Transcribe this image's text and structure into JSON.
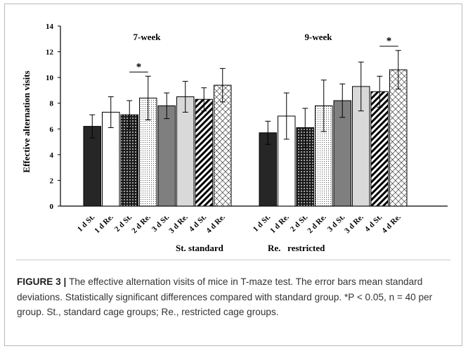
{
  "figure": {
    "label": "FIGURE 3",
    "separator": " | ",
    "caption": "The effective alternation visits of mice in T-maze test. The error bars mean standard deviations. Statistically significant differences compared with standard group. *P < 0.05, n = 40 per group. St., standard cage groups; Re., restricted cage groups."
  },
  "legend_note": {
    "st": "St. standard",
    "re": "Re.   restricted"
  },
  "colors": {
    "st1": "#262626",
    "re1": "#ffffff",
    "st2_pattern": "dots-dark",
    "re2_pattern": "dots-light",
    "st3": "#7f7f7f",
    "re3": "#d9d9d9",
    "st4_pattern": "diagonal-hatch",
    "re4_pattern": "cross-hatch"
  },
  "chart_data": {
    "type": "bar",
    "ylabel": "Effective alternation visits",
    "xlabel": "",
    "ylim": [
      0,
      14
    ],
    "yticks": [
      0,
      2,
      4,
      6,
      8,
      10,
      12,
      14
    ],
    "grid": false,
    "categories": [
      "1 d St.",
      "1 d Re.",
      "2 d St.",
      "2 d Re.",
      "3 d St.",
      "3 d Re.",
      "4 d St.",
      "4 d Re."
    ],
    "panels": [
      {
        "title": "7-week",
        "values": [
          6.2,
          7.3,
          7.1,
          8.4,
          7.8,
          8.5,
          8.3,
          9.4
        ],
        "errors": [
          0.9,
          1.2,
          1.1,
          1.7,
          1.0,
          1.2,
          0.9,
          1.3
        ],
        "significance": [
          {
            "from": 2,
            "to": 3,
            "label": "*"
          }
        ]
      },
      {
        "title": "9-week",
        "values": [
          5.7,
          7.0,
          6.1,
          7.8,
          8.2,
          9.3,
          8.9,
          10.6
        ],
        "errors": [
          0.9,
          1.8,
          1.5,
          2.0,
          1.3,
          1.9,
          1.2,
          1.5
        ],
        "significance": [
          {
            "from": 6,
            "to": 7,
            "label": "*"
          }
        ]
      }
    ]
  }
}
